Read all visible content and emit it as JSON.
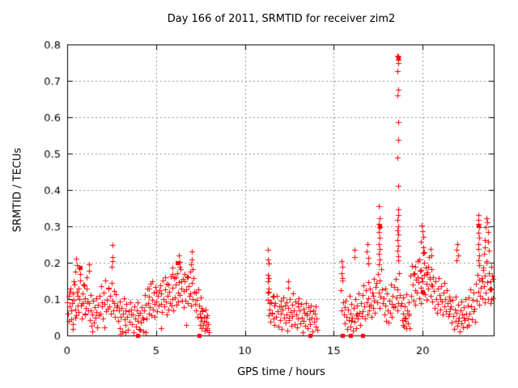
{
  "chart_data": {
    "type": "scatter",
    "title": "Day 166 of 2011, SRMTID for receiver zim2",
    "xlabel": "GPS time / hours",
    "ylabel": "SRMTID / TECUs",
    "xlim": [
      0,
      24
    ],
    "ylim": [
      0,
      0.8
    ],
    "xticks": [
      0,
      5,
      10,
      15,
      20
    ],
    "yticks": [
      0,
      0.1,
      0.2,
      0.3,
      0.4,
      0.5,
      0.6,
      0.7,
      0.8
    ],
    "grid": true,
    "legend": "none",
    "marker": "plus",
    "colors": {
      "marker": "#ff0000",
      "grid": "#909090",
      "axis": "#000000",
      "background": "#ffffff",
      "text": "#000000"
    },
    "series_segments": [
      {
        "x0": 0.02,
        "dx": 0.04,
        "y": [
          0.092,
          0.061,
          0.108,
          0.079,
          0.13,
          0.045,
          0.088,
          0.115,
          0.032,
          0.097,
          0.141,
          0.072,
          0.055,
          0.119,
          0.083,
          0.128,
          0.064,
          0.101,
          0.152,
          0.083,
          0.047,
          0.116,
          0.09,
          0.138,
          0.058,
          0.103,
          0.075,
          0.161,
          0.094,
          0.069,
          0.088,
          0.042,
          0.07,
          0.111,
          0.027,
          0.058,
          0.096,
          0.035,
          0.077,
          0.049,
          0.102,
          0.064,
          0.022,
          0.085,
          0.056,
          0.108,
          0.061,
          0.135,
          0.079,
          0.092,
          0.046,
          0.118,
          0.087,
          0.152,
          0.066,
          0.098,
          0.074,
          0.128,
          0.132,
          0.081,
          0.108,
          0.059,
          0.145,
          0.096,
          0.07,
          0.122,
          0.088,
          0.051,
          0.113,
          0.078,
          0.083,
          0.039,
          0.068,
          0.021,
          0.094,
          0.051,
          0.075,
          0.012,
          0.06,
          0.103,
          0.044,
          0.07,
          0.028,
          0.087,
          0.052,
          0.016,
          0.066,
          0.038,
          0.091,
          0.058,
          0.072,
          0.031,
          0.058,
          0.009,
          0.081,
          0.047,
          0.024,
          0.069,
          0.04,
          0.092,
          0.055,
          0.018,
          0.063,
          0.035,
          0.077,
          0.05,
          0.011,
          0.044,
          0.068,
          0.112,
          0.085,
          0.047,
          0.129,
          0.09,
          0.061,
          0.107,
          0.078,
          0.142,
          0.055,
          0.098,
          0.072,
          0.118,
          0.086,
          0.051,
          0.133,
          0.094,
          0.066,
          0.109,
          0.082,
          0.124,
          0.138,
          0.087,
          0.116,
          0.065,
          0.152,
          0.101,
          0.079,
          0.127,
          0.093,
          0.058,
          0.143,
          0.108,
          0.072,
          0.121,
          0.09,
          0.163,
          0.083,
          0.131,
          0.099,
          0.069,
          0.158,
          0.104,
          0.139,
          0.085,
          0.172,
          0.118,
          0.093,
          0.147,
          0.111,
          0.183,
          0.128,
          0.096,
          0.155,
          0.122,
          0.078,
          0.148,
          0.095,
          0.127,
          0.163,
          0.089,
          0.135,
          0.108,
          0.176,
          0.116,
          0.082,
          0.144,
          0.101,
          0.158,
          0.119,
          0.087,
          0.117,
          0.068,
          0.098,
          0.052,
          0.126,
          0.083,
          0.059,
          0.104,
          0.075,
          0.041,
          0.066,
          0.029,
          0.051,
          0.014,
          0.072,
          0.038,
          0.019,
          0.055,
          0.031,
          0.008
        ]
      },
      {
        "x0": 11.28,
        "dx": 0.04,
        "y": [
          0.098,
          0.055,
          0.12,
          0.071,
          0.038,
          0.092,
          0.063,
          0.107,
          0.046,
          0.082,
          0.029,
          0.088,
          0.051,
          0.11,
          0.067,
          0.024,
          0.079,
          0.043,
          0.096,
          0.06,
          0.017,
          0.072,
          0.105,
          0.049,
          0.083,
          0.035,
          0.091,
          0.057,
          0.013,
          0.076,
          0.042,
          0.099,
          0.064,
          0.027,
          0.085,
          0.053,
          0.115,
          0.07,
          0.031,
          0.094,
          0.058,
          0.022,
          0.08,
          0.047,
          0.102,
          0.068,
          0.033,
          0.087,
          0.05,
          0.009,
          0.074,
          0.041,
          0.063,
          0.026,
          0.09,
          0.055,
          0.019,
          0.078,
          0.044,
          0.066,
          0.031,
          0.083,
          0.048,
          0.012,
          0.07,
          0.037,
          0.059,
          0.024,
          0.081,
          0.046,
          0.015
        ]
      },
      {
        "x0": 15.4,
        "dx": 0.04,
        "y": [
          0.124,
          0.068,
          0.151,
          0.092,
          0.057,
          0.078,
          0.034,
          0.096,
          0.052,
          0.017,
          0.071,
          0.043,
          0.108,
          0.06,
          0.025,
          0.087,
          0.049,
          0.013,
          0.075,
          0.038,
          0.1,
          0.056,
          0.021,
          0.082,
          0.046,
          0.115,
          0.063,
          0.029,
          0.09,
          0.053,
          0.112,
          0.066,
          0.138,
          0.08,
          0.047,
          0.124,
          0.091,
          0.058,
          0.146,
          0.102,
          0.069,
          0.128,
          0.085,
          0.051,
          0.117,
          0.076,
          0.155,
          0.095,
          0.062,
          0.133,
          0.145,
          0.092,
          0.168,
          0.118,
          0.075,
          0.152,
          0.107,
          0.183,
          0.126,
          0.088,
          0.103,
          0.058,
          0.129,
          0.082,
          0.041,
          0.116,
          0.07,
          0.035,
          0.095,
          0.063,
          0.141,
          0.087,
          0.052,
          0.109,
          0.077,
          0.134,
          0.079,
          0.156,
          0.105,
          0.068,
          0.127,
          0.09,
          0.172,
          0.112,
          0.083,
          0.088,
          0.042,
          0.104,
          0.061,
          0.025,
          0.079,
          0.047,
          0.113,
          0.068,
          0.033,
          0.092,
          0.056,
          0.02,
          0.165,
          0.108,
          0.191,
          0.139,
          0.096,
          0.172,
          0.124,
          0.085,
          0.153,
          0.117,
          0.205,
          0.146,
          0.102,
          0.178,
          0.131,
          0.089,
          0.158,
          0.121,
          0.226,
          0.167,
          0.113,
          0.186,
          0.142,
          0.098,
          0.174,
          0.128,
          0.216,
          0.155,
          0.109,
          0.182,
          0.136,
          0.093,
          0.161,
          0.122,
          0.075,
          0.148,
          0.101,
          0.063,
          0.129,
          0.086,
          0.157,
          0.112,
          0.071,
          0.135,
          0.094,
          0.058,
          0.118,
          0.081,
          0.144,
          0.099,
          0.066,
          0.125,
          0.088,
          0.053,
          0.107,
          0.073,
          0.096,
          0.079,
          0.036,
          0.098,
          0.054,
          0.018,
          0.072,
          0.041,
          0.106,
          0.062,
          0.027,
          0.085,
          0.048,
          0.012,
          0.069,
          0.034,
          0.093,
          0.057,
          0.022,
          0.078,
          0.043,
          0.101,
          0.059,
          0.025,
          0.082,
          0.046,
          0.104,
          0.059,
          0.126,
          0.081,
          0.044,
          0.097,
          0.066,
          0.118,
          0.073,
          0.038,
          0.142,
          0.095,
          0.167,
          0.121,
          0.084,
          0.153,
          0.108,
          0.131,
          0.158,
          0.103,
          0.186,
          0.135,
          0.092,
          0.164,
          0.117,
          0.201,
          0.146,
          0.099,
          0.172,
          0.126,
          0.148,
          0.089,
          0.127,
          0.165,
          0.103
        ]
      }
    ],
    "extra_points": [
      [
        11.3,
        0.235
      ],
      [
        11.31,
        0.21
      ],
      [
        11.32,
        0.197
      ],
      [
        11.3,
        0.166
      ],
      [
        11.33,
        0.158
      ],
      [
        11.31,
        0.149
      ],
      [
        11.34,
        0.128
      ],
      [
        11.29,
        0.117
      ],
      [
        18.6,
        0.77
      ],
      [
        18.62,
        0.766
      ],
      [
        18.61,
        0.758
      ],
      [
        18.63,
        0.748
      ],
      [
        18.6,
        0.726
      ],
      [
        18.62,
        0.675
      ],
      [
        18.6,
        0.659
      ],
      [
        18.61,
        0.586
      ],
      [
        18.63,
        0.538
      ],
      [
        18.6,
        0.489
      ],
      [
        18.62,
        0.412
      ],
      [
        18.61,
        0.347
      ],
      [
        18.63,
        0.332
      ],
      [
        18.6,
        0.318
      ],
      [
        18.62,
        0.301
      ],
      [
        18.58,
        0.29
      ],
      [
        18.64,
        0.278
      ],
      [
        18.6,
        0.263
      ],
      [
        18.62,
        0.247
      ],
      [
        18.59,
        0.233
      ],
      [
        18.63,
        0.218
      ],
      [
        18.61,
        0.206
      ],
      [
        17.55,
        0.356
      ],
      [
        17.56,
        0.322
      ],
      [
        17.54,
        0.306
      ],
      [
        17.57,
        0.298
      ],
      [
        17.55,
        0.284
      ],
      [
        17.58,
        0.269
      ],
      [
        17.54,
        0.252
      ],
      [
        17.56,
        0.238
      ],
      [
        17.53,
        0.224
      ],
      [
        17.58,
        0.209
      ],
      [
        17.55,
        0.196
      ],
      [
        23.14,
        0.332
      ],
      [
        23.15,
        0.318
      ],
      [
        23.13,
        0.306
      ],
      [
        23.16,
        0.297
      ],
      [
        23.14,
        0.283
      ],
      [
        23.17,
        0.268
      ],
      [
        23.13,
        0.251
      ],
      [
        23.15,
        0.237
      ],
      [
        23.16,
        0.221
      ],
      [
        23.12,
        0.207
      ],
      [
        23.18,
        0.193
      ],
      [
        0.5,
        0.212
      ],
      [
        0.53,
        0.193
      ],
      [
        0.47,
        0.176
      ],
      [
        1.22,
        0.196
      ],
      [
        1.25,
        0.178
      ],
      [
        2.54,
        0.249
      ],
      [
        2.55,
        0.216
      ],
      [
        2.57,
        0.204
      ],
      [
        2.52,
        0.19
      ],
      [
        5.9,
        0.186
      ],
      [
        5.93,
        0.17
      ],
      [
        6.28,
        0.221
      ],
      [
        6.31,
        0.203
      ],
      [
        6.35,
        0.19
      ],
      [
        7.0,
        0.232
      ],
      [
        7.03,
        0.21
      ],
      [
        6.97,
        0.196
      ],
      [
        7.06,
        0.182
      ],
      [
        12.42,
        0.148
      ],
      [
        12.45,
        0.132
      ],
      [
        15.45,
        0.205
      ],
      [
        15.47,
        0.188
      ],
      [
        15.43,
        0.172
      ],
      [
        15.49,
        0.158
      ],
      [
        16.9,
        0.252
      ],
      [
        16.87,
        0.232
      ],
      [
        16.93,
        0.214
      ],
      [
        16.95,
        0.198
      ],
      [
        16.15,
        0.235
      ],
      [
        16.18,
        0.215
      ],
      [
        19.95,
        0.302
      ],
      [
        19.98,
        0.287
      ],
      [
        20.02,
        0.272
      ],
      [
        19.92,
        0.258
      ],
      [
        20.05,
        0.243
      ],
      [
        20.08,
        0.229
      ],
      [
        20.45,
        0.238
      ],
      [
        20.48,
        0.22
      ],
      [
        21.95,
        0.252
      ],
      [
        21.92,
        0.236
      ],
      [
        21.98,
        0.221
      ],
      [
        21.9,
        0.207
      ],
      [
        23.45,
        0.225
      ],
      [
        23.5,
        0.262
      ],
      [
        23.55,
        0.298
      ],
      [
        23.58,
        0.322
      ],
      [
        23.62,
        0.312
      ],
      [
        23.66,
        0.285
      ],
      [
        23.7,
        0.258
      ],
      [
        23.74,
        0.234
      ],
      [
        23.52,
        0.242
      ],
      [
        23.6,
        0.205
      ],
      [
        23.88,
        0.19
      ],
      [
        23.92,
        0.165
      ],
      [
        0.1,
        0.04
      ],
      [
        0.15,
        0.12
      ],
      [
        0.25,
        0.07
      ],
      [
        0.35,
        0.15
      ],
      [
        0.45,
        0.05
      ],
      [
        0.6,
        0.11
      ],
      [
        0.7,
        0.185
      ],
      [
        0.72,
        0.17
      ],
      [
        0.8,
        0.09
      ],
      [
        0.9,
        0.14
      ],
      [
        1.0,
        0.06
      ],
      [
        1.1,
        0.13
      ],
      [
        4.6,
        0.13
      ],
      [
        4.8,
        0.15
      ],
      [
        5.0,
        0.12
      ],
      [
        5.5,
        0.16
      ],
      [
        5.7,
        0.14
      ],
      [
        6.1,
        0.16
      ],
      [
        6.4,
        0.15
      ],
      [
        6.6,
        0.17
      ],
      [
        6.8,
        0.16
      ],
      [
        7.45,
        0.03
      ],
      [
        7.5,
        0.05
      ],
      [
        7.55,
        0.02
      ],
      [
        7.6,
        0.07
      ],
      [
        7.7,
        0.04
      ],
      [
        7.8,
        0.02
      ],
      [
        7.85,
        0.05
      ],
      [
        7.9,
        0.015
      ],
      [
        0.3,
        0.018
      ],
      [
        1.4,
        0.012
      ],
      [
        2.1,
        0.022
      ],
      [
        3.3,
        0.01
      ],
      [
        4.1,
        0.015
      ],
      [
        5.3,
        0.02
      ],
      [
        6.7,
        0.03
      ],
      [
        3.0,
        0.005
      ],
      [
        4.4,
        0.008
      ],
      [
        11.4,
        0.09
      ],
      [
        11.5,
        0.06
      ],
      [
        11.6,
        0.11
      ],
      [
        12.0,
        0.08
      ],
      [
        12.5,
        0.05
      ],
      [
        13.0,
        0.09
      ],
      [
        13.5,
        0.06
      ],
      [
        16.0,
        0.04
      ],
      [
        16.3,
        0.06
      ],
      [
        16.5,
        0.03
      ],
      [
        17.0,
        0.08
      ],
      [
        17.2,
        0.11
      ],
      [
        18.9,
        0.03
      ],
      [
        19.0,
        0.05
      ],
      [
        19.1,
        0.02
      ],
      [
        19.2,
        0.06
      ],
      [
        19.05,
        0.04
      ],
      [
        19.5,
        0.17
      ],
      [
        19.6,
        0.19
      ],
      [
        19.7,
        0.16
      ],
      [
        19.8,
        0.21
      ],
      [
        19.9,
        0.18
      ],
      [
        20.0,
        0.15
      ],
      [
        20.1,
        0.2
      ],
      [
        20.2,
        0.17
      ],
      [
        20.3,
        0.19
      ],
      [
        20.4,
        0.16
      ],
      [
        20.5,
        0.14
      ],
      [
        21.0,
        0.1
      ],
      [
        21.2,
        0.08
      ],
      [
        21.5,
        0.06
      ],
      [
        22.0,
        0.04
      ],
      [
        22.3,
        0.05
      ],
      [
        22.6,
        0.03
      ],
      [
        23.35,
        0.15
      ],
      [
        23.4,
        0.18
      ],
      [
        23.8,
        0.13
      ],
      [
        23.85,
        0.1
      ],
      [
        23.95,
        0.155
      ]
    ],
    "dense_clumps": [
      [
        3.96,
        0.0
      ],
      [
        7.42,
        0.0
      ],
      [
        13.66,
        0.0
      ],
      [
        15.48,
        0.0
      ],
      [
        15.94,
        0.0
      ],
      [
        16.62,
        0.0
      ],
      [
        17.56,
        0.301
      ],
      [
        18.61,
        0.763
      ],
      [
        23.15,
        0.303
      ],
      [
        0.72,
        0.186
      ],
      [
        6.2,
        0.2
      ],
      [
        20.0,
        0.12
      ]
    ]
  }
}
